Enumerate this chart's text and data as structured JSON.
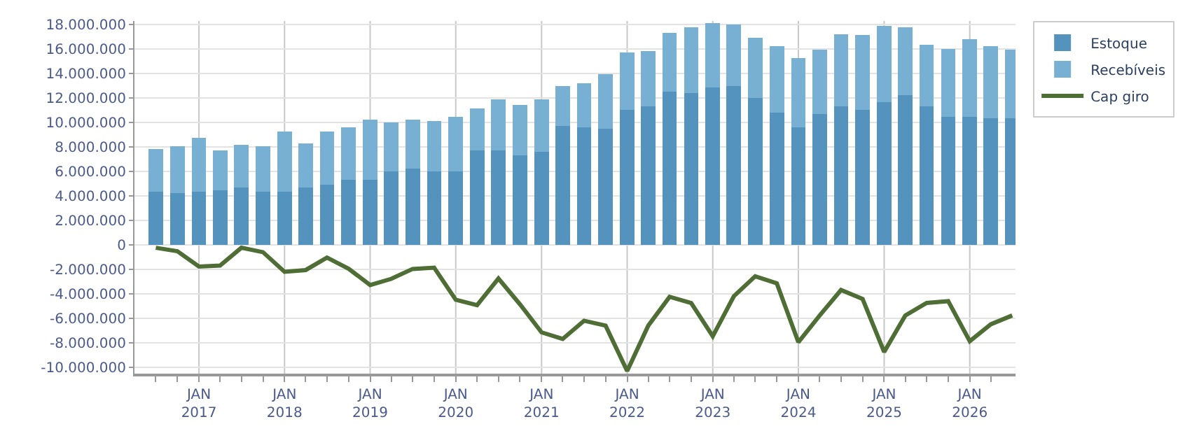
{
  "chart_data": {
    "type": "bar",
    "stacked": true,
    "x": [
      "2016-07-01",
      "2016-10-01",
      "2017-01-01",
      "2017-04-01",
      "2017-07-01",
      "2017-10-01",
      "2018-01-01",
      "2018-04-01",
      "2018-07-01",
      "2018-10-01",
      "2019-01-01",
      "2019-04-01",
      "2019-07-01",
      "2019-10-01",
      "2020-01-01",
      "2020-04-01",
      "2020-07-01",
      "2020-10-01",
      "2021-01-01",
      "2021-04-01",
      "2021-07-01",
      "2021-10-01",
      "2022-01-01",
      "2022-04-01",
      "2022-07-01",
      "2022-10-01",
      "2023-01-01",
      "2023-04-01",
      "2023-07-01",
      "2023-10-01",
      "2024-01-01",
      "2024-04-01",
      "2024-07-01",
      "2024-10-01",
      "2025-01-01",
      "2025-04-01",
      "2025-07-01",
      "2025-10-01",
      "2026-01-01",
      "2026-04-01",
      "2026-07-01"
    ],
    "series": [
      {
        "name": "Estoque",
        "color": "#5593bf",
        "values": [
          4360000,
          4250000,
          4360000,
          4470000,
          4690000,
          4360000,
          4360000,
          4690000,
          4910000,
          5350000,
          5350000,
          6000000,
          6220000,
          6000000,
          6000000,
          7750000,
          7750000,
          7310000,
          7640000,
          9710000,
          9600000,
          9490000,
          11020000,
          11350000,
          12550000,
          12440000,
          12870000,
          12980000,
          12000000,
          10800000,
          9600000,
          10690000,
          11350000,
          11020000,
          11670000,
          12220000,
          11350000,
          10470000,
          10470000,
          10360000,
          10360000
        ]
      },
      {
        "name": "Recebíveis",
        "color": "#77b0d3",
        "values": [
          3490000,
          3850000,
          4370000,
          3280000,
          3490000,
          3710000,
          4910000,
          3600000,
          4360000,
          4250000,
          4900000,
          4040000,
          4030000,
          4150000,
          4470000,
          3380000,
          4140000,
          4140000,
          4250000,
          3270000,
          3600000,
          4470000,
          4690000,
          4470000,
          4800000,
          5340000,
          5240000,
          5020000,
          4910000,
          5450000,
          5670000,
          5240000,
          5890000,
          6110000,
          6220000,
          5560000,
          5010000,
          5570000,
          6330000,
          5890000,
          5570000
        ]
      },
      {
        "name": "Cap giro",
        "type": "line",
        "color": "#4e6e35",
        "values": [
          -220000,
          -500000,
          -1750000,
          -1670000,
          -220000,
          -580000,
          -2180000,
          -2040000,
          -1020000,
          -1930000,
          -3270000,
          -2760000,
          -1950000,
          -1850000,
          -4470000,
          -4910000,
          -2730000,
          -4840000,
          -7130000,
          -7670000,
          -6180000,
          -6580000,
          -10290000,
          -6580000,
          -4220000,
          -4730000,
          -7450000,
          -4180000,
          -2550000,
          -3130000,
          -7930000,
          -5750000,
          -3670000,
          -4400000,
          -8730000,
          -5750000,
          -4730000,
          -4580000,
          -7850000,
          -6470000,
          -5750000
        ]
      }
    ],
    "xlim": [
      "2016-04-01",
      "2026-07-15"
    ],
    "xticks": [
      {
        "value": "2016-07-01",
        "label": null
      },
      {
        "value": "2016-10-01",
        "label": null
      },
      {
        "value": "2017-01-01",
        "label": "JAN\n2017"
      },
      {
        "value": "2017-04-01",
        "label": null
      },
      {
        "value": "2017-07-01",
        "label": null
      },
      {
        "value": "2017-10-01",
        "label": null
      },
      {
        "value": "2018-01-01",
        "label": "JAN\n2018"
      },
      {
        "value": "2018-04-01",
        "label": null
      },
      {
        "value": "2018-07-01",
        "label": null
      },
      {
        "value": "2018-10-01",
        "label": null
      },
      {
        "value": "2019-01-01",
        "label": "JAN\n2019"
      },
      {
        "value": "2019-04-01",
        "label": null
      },
      {
        "value": "2019-07-01",
        "label": null
      },
      {
        "value": "2019-10-01",
        "label": null
      },
      {
        "value": "2020-01-01",
        "label": "JAN\n2020"
      },
      {
        "value": "2020-04-01",
        "label": null
      },
      {
        "value": "2020-07-01",
        "label": null
      },
      {
        "value": "2020-10-01",
        "label": null
      },
      {
        "value": "2021-01-01",
        "label": "JAN\n2021"
      },
      {
        "value": "2021-04-01",
        "label": null
      },
      {
        "value": "2021-07-01",
        "label": null
      },
      {
        "value": "2021-10-01",
        "label": null
      },
      {
        "value": "2022-01-01",
        "label": "JAN\n2022"
      },
      {
        "value": "2022-04-01",
        "label": null
      },
      {
        "value": "2022-07-01",
        "label": null
      },
      {
        "value": "2022-10-01",
        "label": null
      },
      {
        "value": "2023-01-01",
        "label": "JAN\n2023"
      },
      {
        "value": "2023-04-01",
        "label": null
      },
      {
        "value": "2023-07-01",
        "label": null
      },
      {
        "value": "2023-10-01",
        "label": null
      },
      {
        "value": "2024-01-01",
        "label": "JAN\n2024"
      },
      {
        "value": "2024-04-01",
        "label": null
      },
      {
        "value": "2024-07-01",
        "label": null
      },
      {
        "value": "2024-10-01",
        "label": null
      },
      {
        "value": "2025-01-01",
        "label": "JAN\n2025"
      },
      {
        "value": "2025-04-01",
        "label": null
      },
      {
        "value": "2025-07-01",
        "label": null
      },
      {
        "value": "2025-10-01",
        "label": null
      },
      {
        "value": "2026-01-01",
        "label": "JAN\n2026"
      },
      {
        "value": "2026-04-01",
        "label": null
      }
    ],
    "ylim": [
      -10500000,
      18300000
    ],
    "yticks": [
      {
        "value": -10000000,
        "label": "-10.000.000"
      },
      {
        "value": -8000000,
        "label": "-8.000.000"
      },
      {
        "value": -6000000,
        "label": "-6.000.000"
      },
      {
        "value": -4000000,
        "label": "-4.000.000"
      },
      {
        "value": -2000000,
        "label": "-2.000.000"
      },
      {
        "value": 0,
        "label": "0"
      },
      {
        "value": 2000000,
        "label": "2.000.000"
      },
      {
        "value": 4000000,
        "label": "4.000.000"
      },
      {
        "value": 6000000,
        "label": "6.000.000"
      },
      {
        "value": 8000000,
        "label": "8.000.000"
      },
      {
        "value": 10000000,
        "label": "10.000.000"
      },
      {
        "value": 12000000,
        "label": "12.000.000"
      },
      {
        "value": 14000000,
        "label": "14.000.000"
      },
      {
        "value": 16000000,
        "label": "16.000.000"
      },
      {
        "value": 18000000,
        "label": "18.000.000"
      }
    ],
    "grid": true,
    "legend": "top right"
  }
}
